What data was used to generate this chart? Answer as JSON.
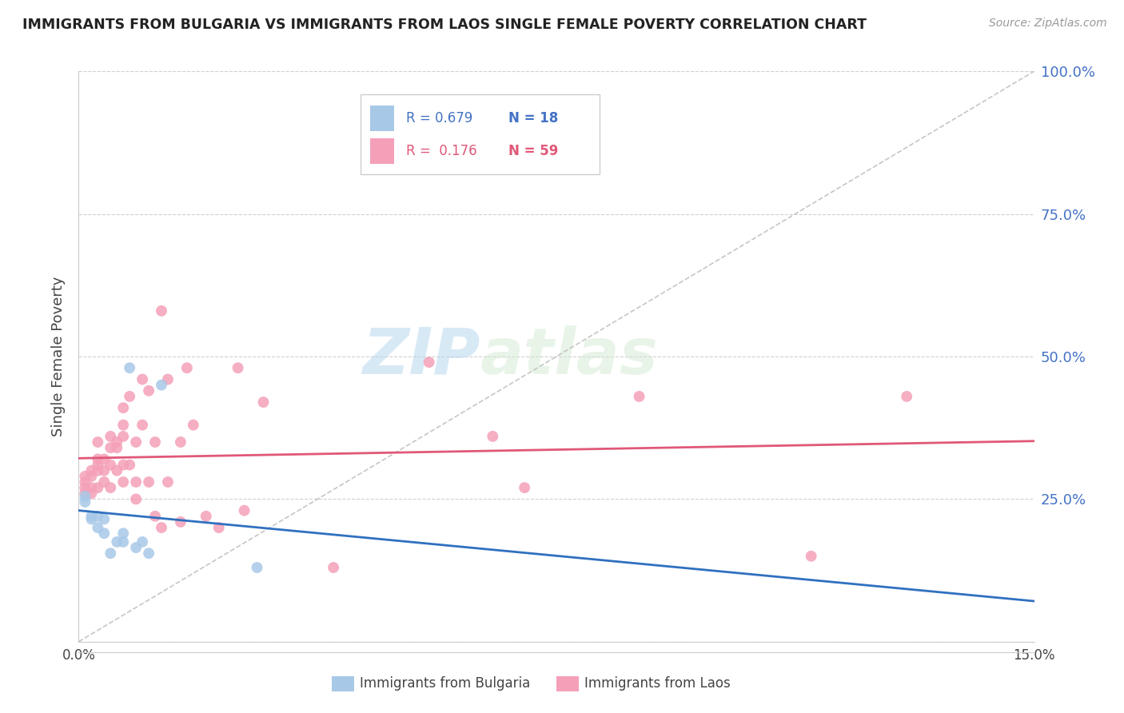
{
  "title": "IMMIGRANTS FROM BULGARIA VS IMMIGRANTS FROM LAOS SINGLE FEMALE POVERTY CORRELATION CHART",
  "source": "Source: ZipAtlas.com",
  "ylabel": "Single Female Poverty",
  "legend_label_blue": "Immigrants from Bulgaria",
  "legend_label_pink": "Immigrants from Laos",
  "blue_color": "#a8c8e8",
  "pink_color": "#f4a0b8",
  "blue_line_color": "#3070c0",
  "pink_line_color": "#e05878",
  "ref_line_color": "#c0c0c0",
  "watermark_zip": "ZIP",
  "watermark_atlas": "atlas",
  "bg_color": "#ffffff",
  "grid_color": "#d0d0d0",
  "xlim": [
    0.0,
    0.15
  ],
  "ylim": [
    0.0,
    1.0
  ],
  "bulgaria_x": [
    0.001,
    0.001,
    0.002,
    0.002,
    0.003,
    0.003,
    0.004,
    0.004,
    0.005,
    0.006,
    0.007,
    0.007,
    0.008,
    0.009,
    0.01,
    0.011,
    0.013,
    0.028
  ],
  "bulgaria_y": [
    0.245,
    0.255,
    0.215,
    0.22,
    0.2,
    0.22,
    0.215,
    0.19,
    0.155,
    0.175,
    0.19,
    0.175,
    0.48,
    0.165,
    0.175,
    0.155,
    0.45,
    0.13
  ],
  "laos_x": [
    0.001,
    0.001,
    0.001,
    0.001,
    0.002,
    0.002,
    0.002,
    0.002,
    0.003,
    0.003,
    0.003,
    0.003,
    0.003,
    0.004,
    0.004,
    0.004,
    0.005,
    0.005,
    0.005,
    0.005,
    0.006,
    0.006,
    0.006,
    0.007,
    0.007,
    0.007,
    0.007,
    0.007,
    0.008,
    0.008,
    0.009,
    0.009,
    0.009,
    0.01,
    0.01,
    0.011,
    0.011,
    0.012,
    0.012,
    0.013,
    0.013,
    0.014,
    0.014,
    0.016,
    0.016,
    0.017,
    0.018,
    0.02,
    0.022,
    0.025,
    0.026,
    0.029,
    0.04,
    0.055,
    0.065,
    0.07,
    0.088,
    0.115,
    0.13
  ],
  "laos_y": [
    0.26,
    0.27,
    0.28,
    0.29,
    0.26,
    0.27,
    0.29,
    0.3,
    0.27,
    0.3,
    0.31,
    0.32,
    0.35,
    0.28,
    0.3,
    0.32,
    0.27,
    0.31,
    0.34,
    0.36,
    0.3,
    0.34,
    0.35,
    0.28,
    0.31,
    0.36,
    0.38,
    0.41,
    0.31,
    0.43,
    0.25,
    0.28,
    0.35,
    0.38,
    0.46,
    0.28,
    0.44,
    0.22,
    0.35,
    0.2,
    0.58,
    0.28,
    0.46,
    0.21,
    0.35,
    0.48,
    0.38,
    0.22,
    0.2,
    0.48,
    0.23,
    0.42,
    0.13,
    0.49,
    0.36,
    0.27,
    0.43,
    0.15,
    0.43
  ]
}
